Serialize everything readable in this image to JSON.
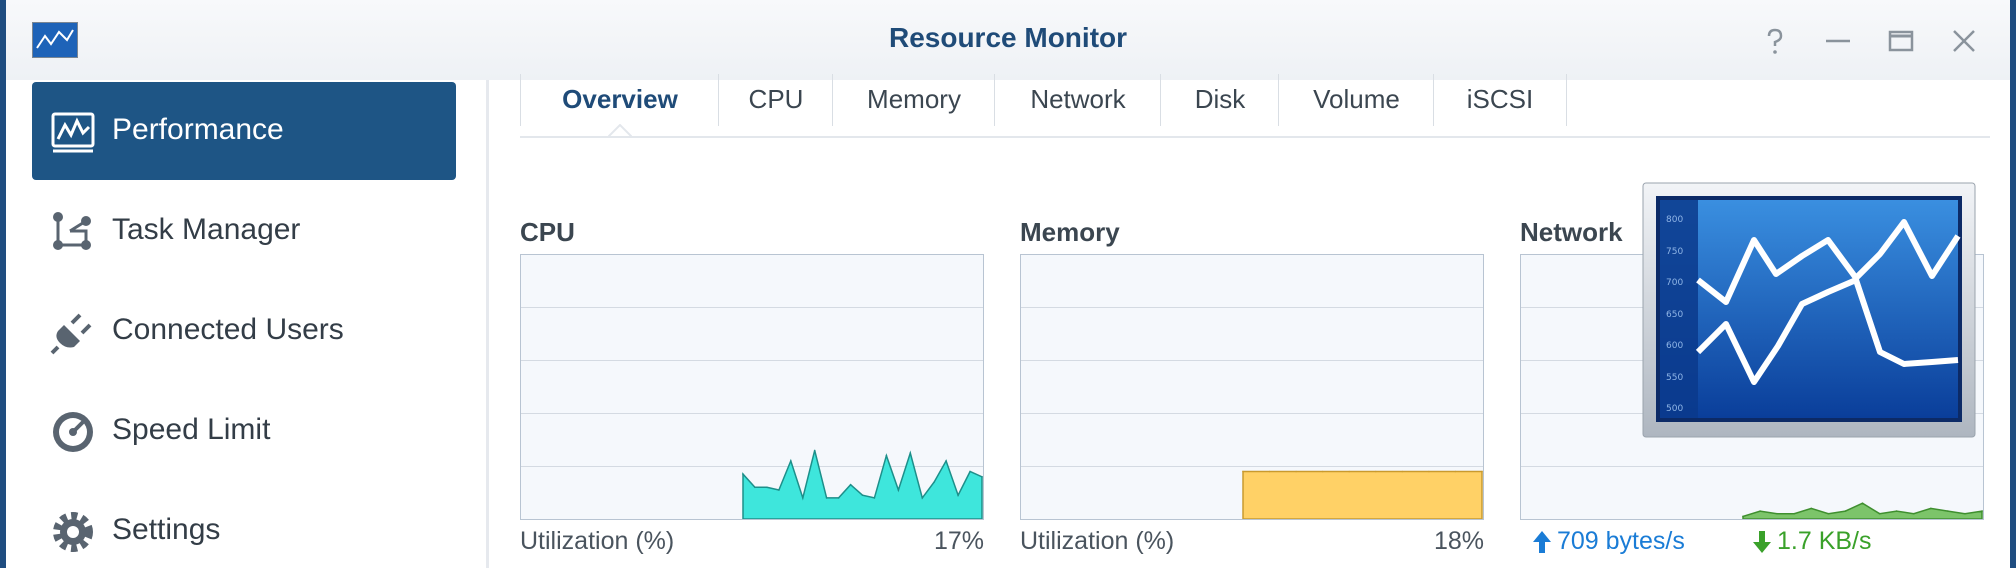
{
  "window": {
    "title": "Resource Monitor",
    "controls": [
      "help",
      "minimize",
      "maximize",
      "close"
    ]
  },
  "sidebar": {
    "items": [
      {
        "label": "Performance",
        "icon": "performance-icon",
        "active": true
      },
      {
        "label": "Task Manager",
        "icon": "task-manager-icon",
        "active": false
      },
      {
        "label": "Connected Users",
        "icon": "plug-icon",
        "active": false
      },
      {
        "label": "Speed Limit",
        "icon": "speedometer-icon",
        "active": false
      },
      {
        "label": "Settings",
        "icon": "gear-icon",
        "active": false
      }
    ]
  },
  "tabs": [
    {
      "label": "Overview",
      "active": true
    },
    {
      "label": "CPU",
      "active": false
    },
    {
      "label": "Memory",
      "active": false
    },
    {
      "label": "Network",
      "active": false
    },
    {
      "label": "Disk",
      "active": false
    },
    {
      "label": "Volume",
      "active": false
    },
    {
      "label": "iSCSI",
      "active": false
    }
  ],
  "panels": {
    "cpu": {
      "title": "CPU",
      "footer_label": "Utilization (%)",
      "footer_value": "17%"
    },
    "memory": {
      "title": "Memory",
      "footer_label": "Utilization (%)",
      "footer_value": "18%"
    },
    "network": {
      "title": "Network",
      "upload": "709 bytes/s",
      "download": "1.7 KB/s"
    }
  },
  "colors": {
    "accent": "#1e5585",
    "cpu_fill": "#3ee6dc",
    "memory_fill": "#ffd166",
    "upload": "#1a7cd6",
    "download": "#3aa12a"
  },
  "chart_data": [
    {
      "type": "area",
      "name": "cpu",
      "ylim": [
        0,
        100
      ],
      "values": [
        17,
        12,
        12,
        11,
        22,
        8,
        26,
        8,
        8,
        13,
        9,
        8,
        24,
        11,
        25,
        8,
        14,
        22,
        9,
        18,
        16
      ]
    },
    {
      "type": "area",
      "name": "memory",
      "ylim": [
        0,
        100
      ],
      "values": [
        18,
        18,
        18,
        18,
        18,
        18,
        18,
        18,
        18,
        18
      ]
    },
    {
      "type": "area",
      "name": "network",
      "values": [
        1,
        3,
        2,
        2,
        4,
        2,
        3,
        6,
        2,
        3,
        2,
        4,
        3,
        2,
        3
      ]
    }
  ]
}
